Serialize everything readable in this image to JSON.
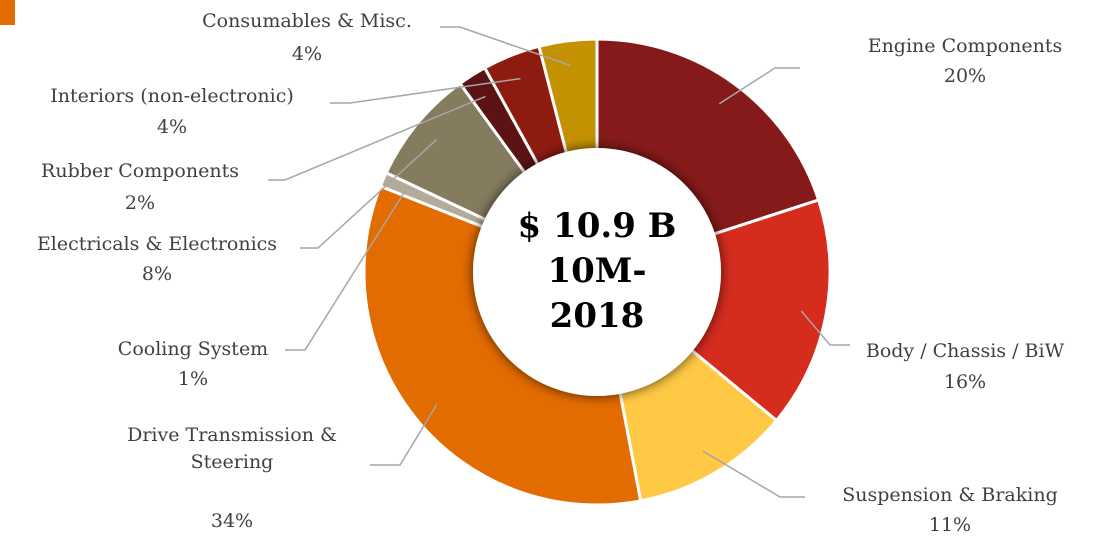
{
  "chart_data": {
    "type": "donut",
    "categories": [
      "Engine Components",
      "Body / Chassis / BiW",
      "Suspension & Braking",
      "Drive Transmission &\nSteering",
      "Cooling System",
      "Electricals & Electronics",
      "Rubber Components",
      "Interiors (non-electronic)",
      "Consumables & Misc."
    ],
    "values": [
      20,
      16,
      11,
      34,
      1,
      8,
      2,
      4,
      4
    ],
    "value_labels": [
      "20%",
      "16%",
      "11%",
      "34%",
      "1%",
      "8%",
      "2%",
      "4%",
      "4%"
    ],
    "colors": [
      "#861a1a",
      "#d52c1e",
      "#ffc945",
      "#e36c00",
      "#b3aa9a",
      "#857b5e",
      "#5b1313",
      "#8e1b10",
      "#c49102"
    ],
    "center_text": [
      "$ 10.9 B",
      "10M-",
      "2018"
    ]
  }
}
